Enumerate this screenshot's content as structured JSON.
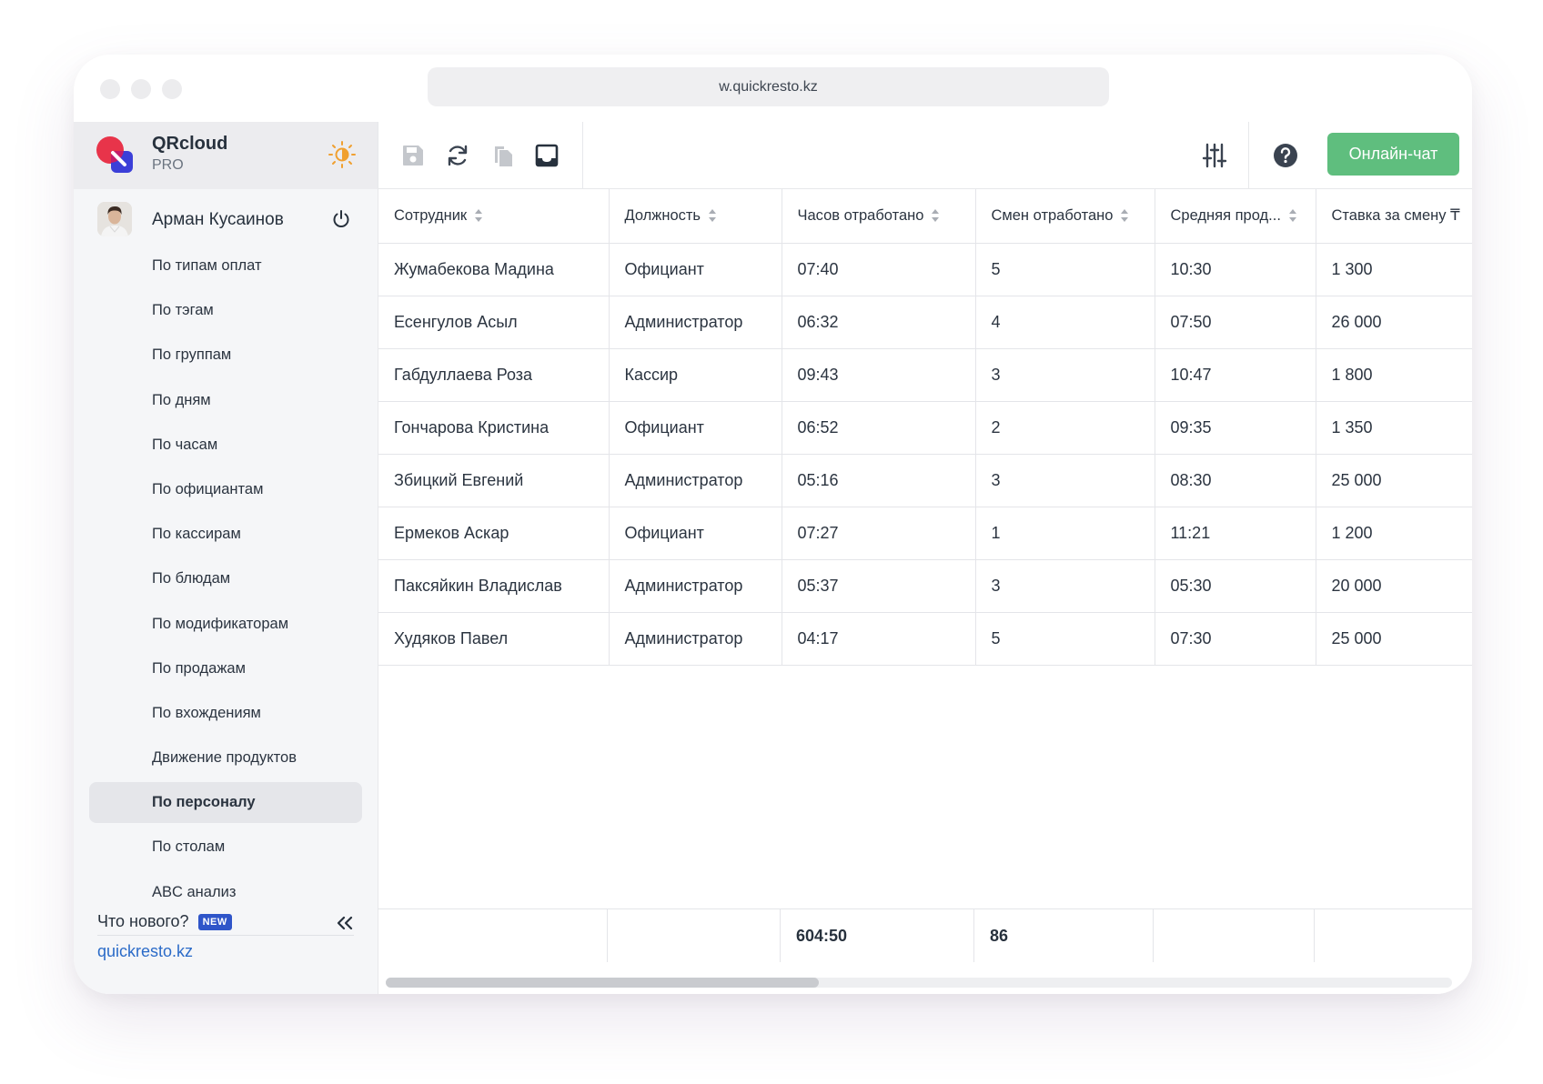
{
  "browser": {
    "url": "w.quickresto.kz"
  },
  "brand": {
    "name": "QRcloud",
    "plan": "PRO"
  },
  "user": {
    "name": "Арман Кусаинов"
  },
  "menu": [
    {
      "label": "По типам оплат"
    },
    {
      "label": "По тэгам"
    },
    {
      "label": "По группам"
    },
    {
      "label": "По дням"
    },
    {
      "label": "По часам"
    },
    {
      "label": "По официантам"
    },
    {
      "label": "По кассирам"
    },
    {
      "label": "По блюдам"
    },
    {
      "label": "По модификаторам"
    },
    {
      "label": "По продажам"
    },
    {
      "label": "По вхождениям"
    },
    {
      "label": "Движение продуктов"
    },
    {
      "label": "По персоналу",
      "active": true
    },
    {
      "label": "По столам"
    },
    {
      "label": "ABC анализ"
    }
  ],
  "sidebar_footer": {
    "whats_new": "Что нового?",
    "new_badge": "NEW",
    "site_link": "quickresto.kz"
  },
  "toolbar": {
    "chat_button": "Онлайн-чат",
    "icons": [
      "save-icon",
      "refresh-icon",
      "copy-icon",
      "inbox-icon",
      "filter-sliders-icon",
      "help-icon"
    ]
  },
  "table": {
    "columns": [
      "Сотрудник",
      "Должность",
      "Часов отработано",
      "Смен отработано",
      "Средняя прод...",
      "Ставка за смену ₸"
    ],
    "rows": [
      [
        "Жумабекова Мадина",
        "Официант",
        "07:40",
        "5",
        "10:30",
        "1 300"
      ],
      [
        "Есенгулов Асыл",
        "Администратор",
        "06:32",
        "4",
        "07:50",
        "26 000"
      ],
      [
        "Габдуллаева Роза",
        "Кассир",
        "09:43",
        "3",
        "10:47",
        "1 800"
      ],
      [
        "Гончарова Кристина",
        "Официант",
        "06:52",
        "2",
        "09:35",
        "1 350"
      ],
      [
        "Збицкий Евгений",
        "Администратор",
        "05:16",
        "3",
        "08:30",
        "25 000"
      ],
      [
        "Ермеков Аскар",
        "Официант",
        "07:27",
        "1",
        "11:21",
        "1 200"
      ],
      [
        "Паксяйкин Владислав",
        "Администратор",
        "05:37",
        "3",
        "05:30",
        "20 000"
      ],
      [
        "Худяков Павел",
        "Администратор",
        "04:17",
        "5",
        "07:30",
        "25 000"
      ]
    ],
    "totals": {
      "hours": "604:50",
      "shifts": "86"
    }
  },
  "colors": {
    "accent_green": "#5fbe7e",
    "link_blue": "#2b6bc8",
    "badge_blue": "#2f55c9",
    "logo_red": "#e8344a",
    "logo_blue": "#3b3fd8",
    "sun_orange": "#f0a030"
  }
}
